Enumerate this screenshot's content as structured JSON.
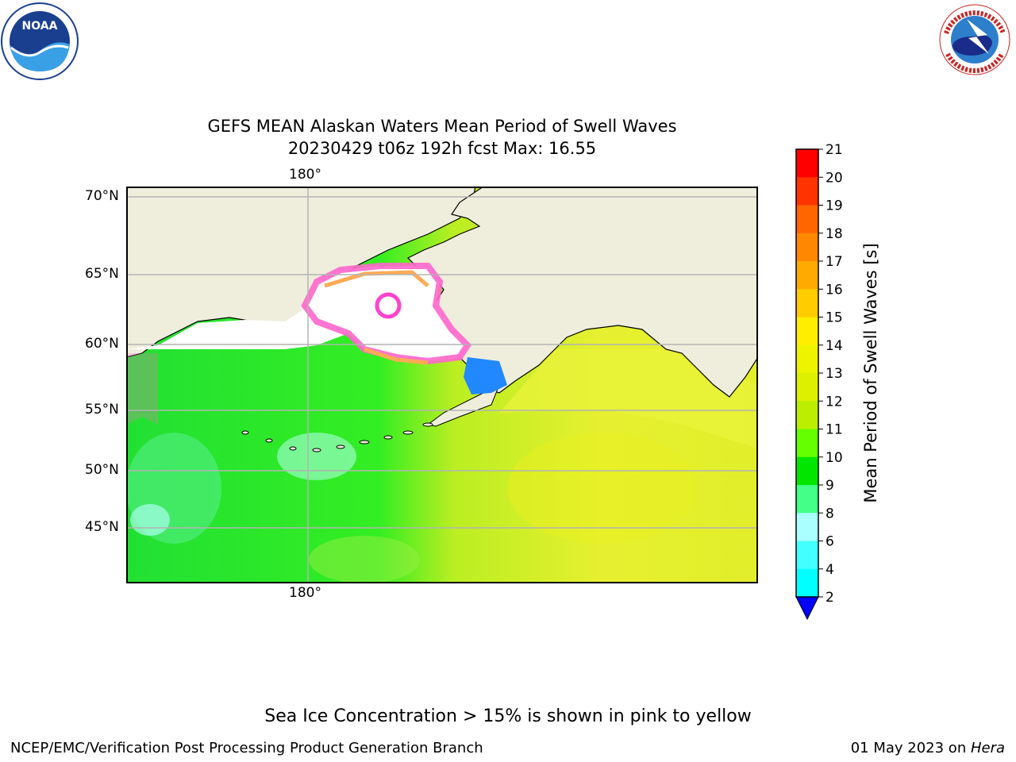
{
  "header": {
    "title_line1": "GEFS MEAN Alaskan Waters Mean Period of Swell Waves",
    "title_line2": "20230429 t06z 192h fcst   Max: 16.55"
  },
  "logos": {
    "noaa_text": "NOAA",
    "noaa_ring_text": "NATIONAL OCEANIC AND ATMOSPHERIC ADMINISTRATION · U.S. DEPARTMENT OF COMMERCE",
    "nws_ring_text": "NATIONAL WEATHER SERVICE"
  },
  "map": {
    "lon_label_top": "180°",
    "lon_label_bottom": "180°",
    "lat_labels": [
      "70°N",
      "65°N",
      "60°N",
      "55°N",
      "50°N",
      "45°N"
    ],
    "colors": {
      "land": "#efeddc",
      "ice": "#ffffff",
      "ice_edge_pink": "#ff66cc",
      "ice_edge_orange": "#ffaa55",
      "ocean_west": "#33ee33",
      "ocean_east": "#ddf02a",
      "ocean_gulf": "#e8f23a",
      "bristol_bay": "#2288ff",
      "grid": "#b3b3b3"
    }
  },
  "colorbar": {
    "label": "Mean Period of Swell Waves [s]",
    "ticks": [
      "21",
      "20",
      "19",
      "18",
      "17",
      "16",
      "15",
      "14",
      "13",
      "12",
      "11",
      "10",
      "9",
      "8",
      "6",
      "4",
      "2"
    ],
    "colors": [
      "#ff0000",
      "#ff3300",
      "#ff6600",
      "#ff8800",
      "#ffaa00",
      "#ffcc00",
      "#ffee00",
      "#eef400",
      "#ddf000",
      "#bbee00",
      "#66ff00",
      "#00e600",
      "#44ff88",
      "#aaffff",
      "#44ffff",
      "#00ffff",
      "#00ccff",
      "#0077ff"
    ],
    "extend_color": "#0000ff"
  },
  "footer": {
    "note": "Sea Ice Concentration > 15% is shown in pink to yellow",
    "credit_left": "NCEP/EMC/Verification Post Processing Product Generation Branch",
    "credit_right_date": "01 May 2023 on ",
    "credit_right_machine": "Hera"
  }
}
